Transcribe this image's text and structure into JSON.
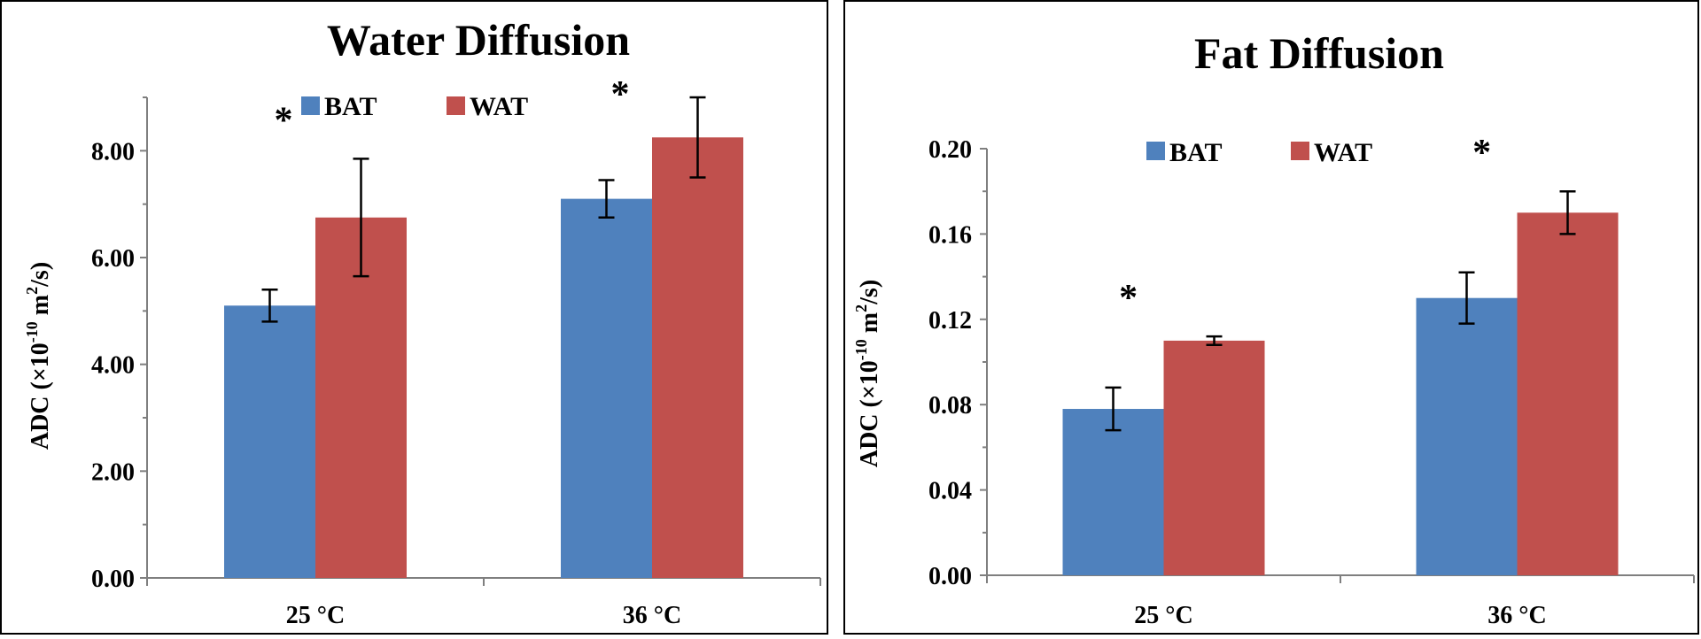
{
  "chart_data": [
    {
      "type": "bar",
      "title": "Water Diffusion",
      "ylabel_main": "ADC (×10",
      "ylabel_sup_exp": "-10",
      "ylabel_mid": " m",
      "ylabel_sup_sq": "2",
      "ylabel_end": "/s)",
      "xlabel": "",
      "categories": [
        "25 °C",
        "36 °C"
      ],
      "ylim": [
        0,
        9
      ],
      "yticks": [
        0,
        2,
        4,
        6,
        8
      ],
      "ytick_labels": [
        "0.00",
        "2.00",
        "4.00",
        "6.00",
        "8.00"
      ],
      "series": [
        {
          "name": "BAT",
          "color": "#4F81BD",
          "values": [
            5.1,
            7.1
          ],
          "errors": [
            0.3,
            0.35
          ]
        },
        {
          "name": "WAT",
          "color": "#C0504D",
          "values": [
            6.75,
            8.25
          ],
          "errors": [
            1.1,
            0.75
          ]
        }
      ],
      "annotations": [
        "*",
        "*"
      ],
      "legend_position": "top-center",
      "grid": false
    },
    {
      "type": "bar",
      "title": "Fat Diffusion",
      "ylabel_main": "ADC (×10",
      "ylabel_sup_exp": "-10",
      "ylabel_mid": " m",
      "ylabel_sup_sq": "2",
      "ylabel_end": "/s)",
      "xlabel": "",
      "categories": [
        "25 °C",
        "36 °C"
      ],
      "ylim": [
        0,
        0.2
      ],
      "yticks": [
        0,
        0.04,
        0.08,
        0.12,
        0.16,
        0.2
      ],
      "ytick_labels": [
        "0.00",
        "0.04",
        "0.08",
        "0.12",
        "0.16",
        "0.20"
      ],
      "series": [
        {
          "name": "BAT",
          "color": "#4F81BD",
          "values": [
            0.078,
            0.13
          ],
          "errors": [
            0.01,
            0.012
          ]
        },
        {
          "name": "WAT",
          "color": "#C0504D",
          "values": [
            0.11,
            0.17
          ],
          "errors": [
            0.002,
            0.01
          ]
        }
      ],
      "annotations": [
        "*",
        "*"
      ],
      "legend_position": "top-center",
      "grid": false
    }
  ]
}
